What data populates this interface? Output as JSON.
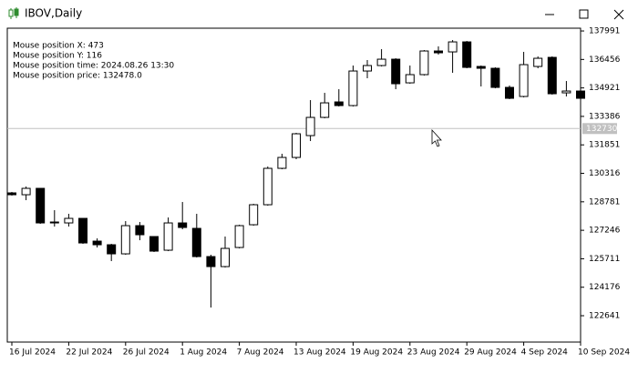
{
  "window": {
    "title": "IBOV,Daily"
  },
  "mouse_info": [
    "Mouse position X: 473",
    "Mouse position Y: 116",
    "Mouse position time: 2024.08.26 13:30",
    "Mouse position price: 132478.0"
  ],
  "chart_data": {
    "type": "candlestick",
    "categories": [
      "16 Jul 2024",
      null,
      null,
      null,
      "22 Jul 2024",
      null,
      null,
      null,
      "26 Jul 2024",
      null,
      null,
      null,
      "1 Aug 2024",
      null,
      null,
      null,
      "7 Aug 2024",
      null,
      null,
      null,
      "13 Aug 2024",
      null,
      null,
      null,
      "19 Aug 2024",
      null,
      null,
      null,
      "23 Aug 2024",
      null,
      null,
      null,
      "29 Aug 2024",
      null,
      null,
      null,
      "4 Sep 2024",
      null,
      null,
      null,
      "10 Sep 2024"
    ],
    "open": [
      129262,
      129163,
      129507,
      127692,
      127643,
      127888,
      126662,
      126466,
      125976,
      127496,
      126908,
      126172,
      127643,
      127349,
      125829,
      125289,
      126319,
      127545,
      128624,
      130586,
      131174,
      132351,
      133332,
      134166,
      133969,
      135833,
      136127,
      136470,
      135195,
      135637,
      136912,
      136863,
      137402,
      136078,
      135980,
      134950,
      134460,
      136078,
      136568,
      134656,
      134754
    ],
    "high": [
      129311,
      129605,
      129507,
      128330,
      128134,
      127888,
      126810,
      126515,
      127741,
      127692,
      126908,
      127937,
      128771,
      128134,
      125927,
      126908,
      127545,
      128673,
      130684,
      131370,
      132498,
      134264,
      134656,
      134852,
      136127,
      136421,
      137010,
      136519,
      136127,
      136961,
      137157,
      137500,
      137451,
      136127,
      136029,
      135048,
      136863,
      136618,
      136618,
      135293,
      134803
    ],
    "low": [
      129114,
      128869,
      127594,
      127447,
      127447,
      126515,
      126319,
      125584,
      125927,
      126711,
      126074,
      126123,
      127300,
      125780,
      123082,
      125240,
      126270,
      127496,
      128575,
      130537,
      131076,
      132057,
      133283,
      133920,
      133920,
      135441,
      136078,
      134852,
      135146,
      135588,
      136716,
      135735,
      135980,
      134999,
      134901,
      134313,
      134411,
      135980,
      134558,
      134460,
      133773
    ],
    "close": [
      129163,
      129507,
      127643,
      127643,
      127888,
      126564,
      126466,
      125976,
      127496,
      127006,
      126123,
      127643,
      127398,
      125829,
      125289,
      126270,
      127496,
      128624,
      130586,
      131174,
      132449,
      133332,
      134116,
      133969,
      135833,
      136127,
      136470,
      135146,
      135637,
      136912,
      136814,
      137402,
      136029,
      135980,
      134950,
      134362,
      136176,
      136519,
      134607,
      134754,
      134362
    ],
    "up_color": "#ffffff",
    "down_color": "#000000",
    "edge_color": "#000000",
    "ylim": [
      121220,
      138140
    ],
    "yticks": [
      137991,
      136456,
      134921,
      133386,
      131851,
      130316,
      128781,
      127246,
      125711,
      124176,
      122641
    ],
    "last_price": 132730
  }
}
